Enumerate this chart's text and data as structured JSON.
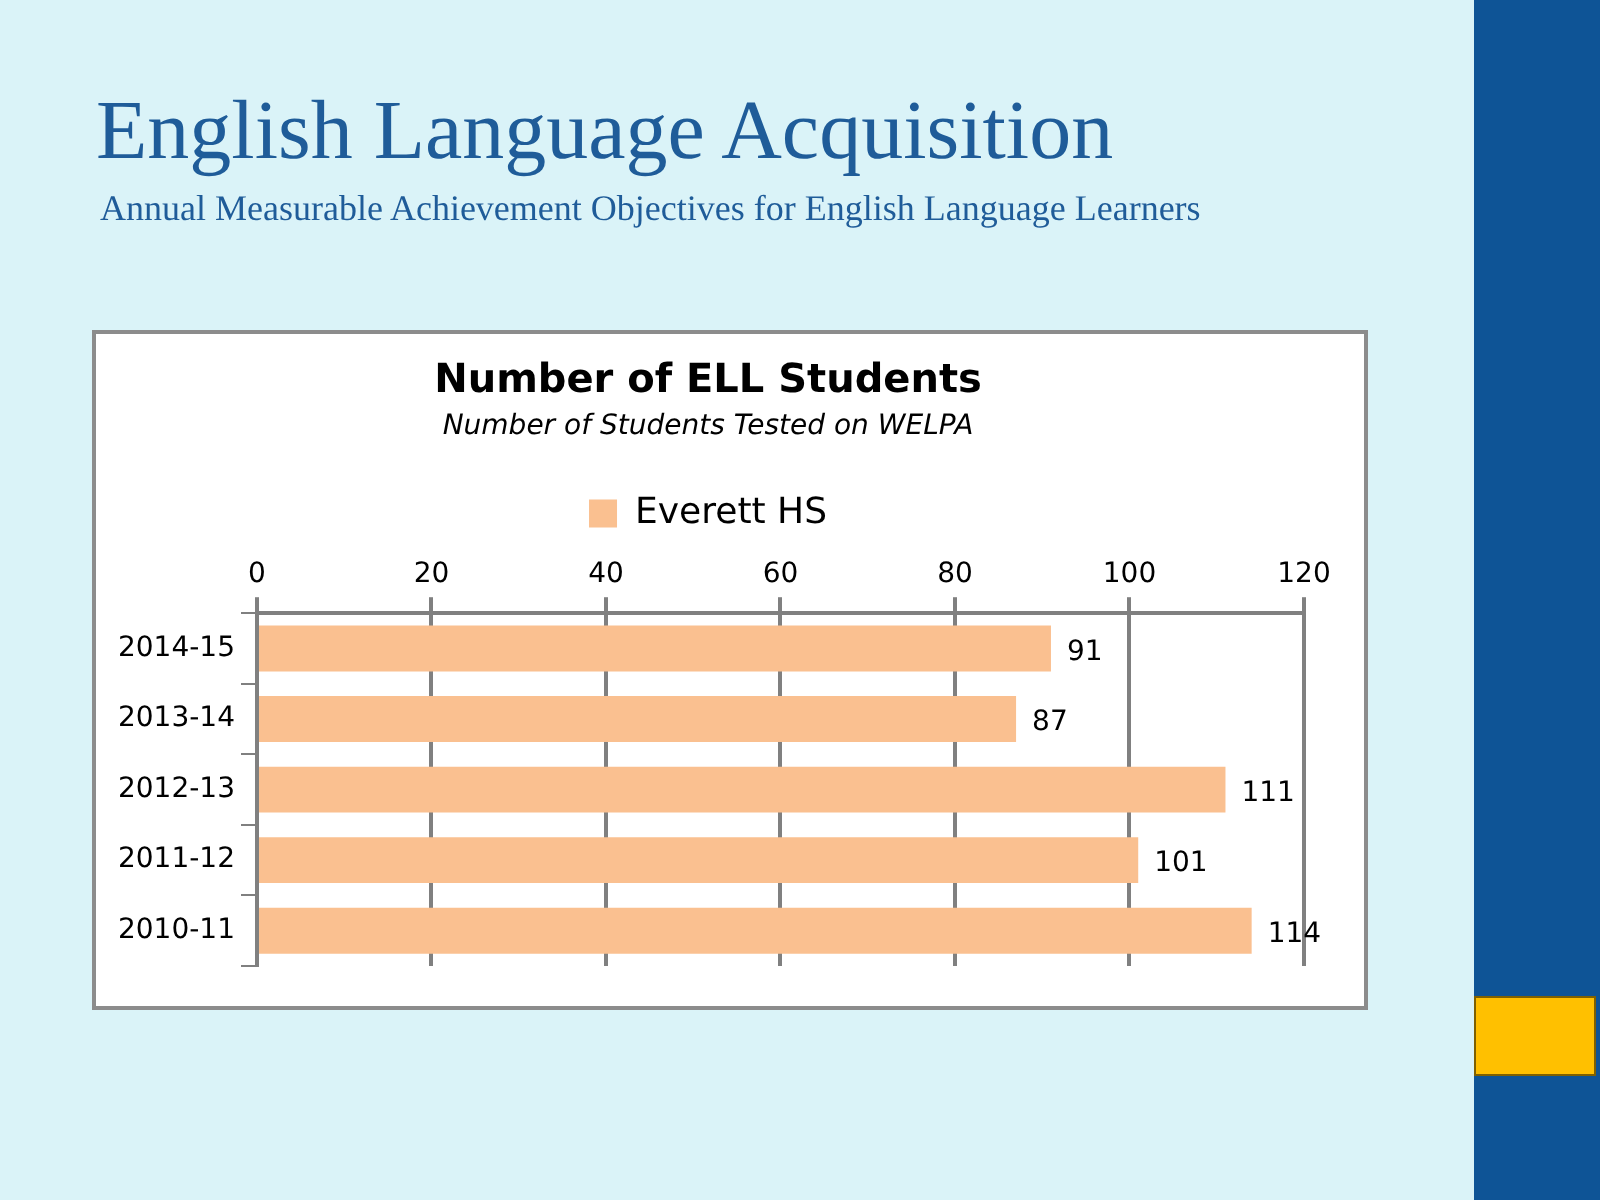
{
  "chart_data": {
    "type": "bar",
    "orientation": "horizontal",
    "title": "Number of ELL Students",
    "subtitle": "Number of Students Tested on WELPA",
    "annotations": [
      "English Language Acquisition",
      "Annual Measurable Achievement Objectives for English Language Learners"
    ],
    "categories": [
      "2014-15",
      "2013-14",
      "2012-13",
      "2011-12",
      "2010-11"
    ],
    "series": [
      {
        "name": "Everett HS",
        "color": "#fac090",
        "values": [
          91,
          87,
          111,
          101,
          114
        ]
      }
    ],
    "xlim": [
      0,
      120
    ],
    "xticks": [
      0,
      20,
      40,
      60,
      80,
      100,
      120
    ],
    "grid": "x",
    "legend": "top",
    "data_labels": true
  }
}
